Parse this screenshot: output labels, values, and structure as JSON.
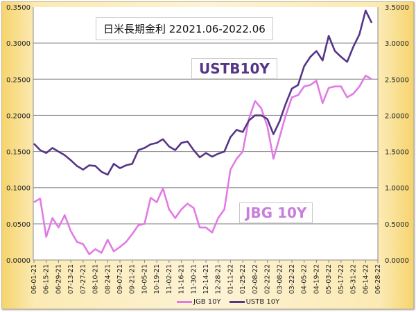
{
  "chart_data": {
    "type": "line",
    "title": "日米長期金利 22021.06-2022.06",
    "x_ticks": [
      "06-01-21",
      "06-15-21",
      "06-29-21",
      "07-13-21",
      "07-27-21",
      "08-10-21",
      "08-24-21",
      "09-07-21",
      "09-21-21",
      "10-05-21",
      "10-19-21",
      "11-02-21",
      "11-16-21",
      "11-30-21",
      "12-14-21",
      "12-28-21",
      "01-11-22",
      "01-25-22",
      "02-08-22",
      "02-22-22",
      "03-08-22",
      "03-22-22",
      "04-05-22",
      "04-19-22",
      "05-03-22",
      "05-17-22",
      "05-31-22",
      "06-14-22",
      "06-28-22"
    ],
    "left_axis": {
      "range": [
        0,
        0.35
      ],
      "ticks": [
        "0.0000",
        "0.0500",
        "0.1000",
        "0.1500",
        "0.2000",
        "0.2500",
        "0.3000",
        "0.3500"
      ]
    },
    "right_axis": {
      "range": [
        0,
        3.5
      ],
      "ticks": [
        "0.0000",
        "0.5000",
        "1.0000",
        "1.5000",
        "2.0000",
        "2.5000",
        "3.0000",
        "3.5000"
      ]
    },
    "grid": true,
    "legend_position": "bottom",
    "x_interval": "weekly from 06-01-21",
    "series": [
      {
        "name": "JGB 10Y",
        "axis": "left",
        "color": "#e27ae6",
        "values": [
          0.08,
          0.085,
          0.032,
          0.058,
          0.045,
          0.062,
          0.04,
          0.025,
          0.022,
          0.008,
          0.015,
          0.01,
          0.028,
          0.012,
          0.018,
          0.025,
          0.036,
          0.048,
          0.05,
          0.086,
          0.08,
          0.099,
          0.07,
          0.058,
          0.07,
          0.078,
          0.072,
          0.045,
          0.045,
          0.038,
          0.058,
          0.07,
          0.125,
          0.14,
          0.15,
          0.195,
          0.22,
          0.21,
          0.185,
          0.14,
          0.17,
          0.2,
          0.225,
          0.228,
          0.24,
          0.242,
          0.248,
          0.217,
          0.238,
          0.24,
          0.24,
          0.225,
          0.23,
          0.24,
          0.255,
          0.25
        ]
      },
      {
        "name": "USTB 10Y",
        "axis": "right",
        "color": "#553587",
        "values": [
          1.61,
          1.52,
          1.48,
          1.55,
          1.5,
          1.45,
          1.38,
          1.3,
          1.25,
          1.31,
          1.3,
          1.22,
          1.18,
          1.33,
          1.27,
          1.31,
          1.33,
          1.52,
          1.55,
          1.6,
          1.62,
          1.67,
          1.57,
          1.52,
          1.62,
          1.64,
          1.52,
          1.42,
          1.48,
          1.43,
          1.47,
          1.5,
          1.7,
          1.8,
          1.77,
          1.93,
          2.0,
          2.0,
          1.95,
          1.74,
          1.92,
          2.16,
          2.37,
          2.42,
          2.68,
          2.81,
          2.89,
          2.76,
          3.1,
          2.89,
          2.81,
          2.74,
          2.95,
          3.12,
          3.45,
          3.28
        ]
      }
    ],
    "annotations": [
      "USTB10Y",
      "JBG 10Y"
    ]
  }
}
